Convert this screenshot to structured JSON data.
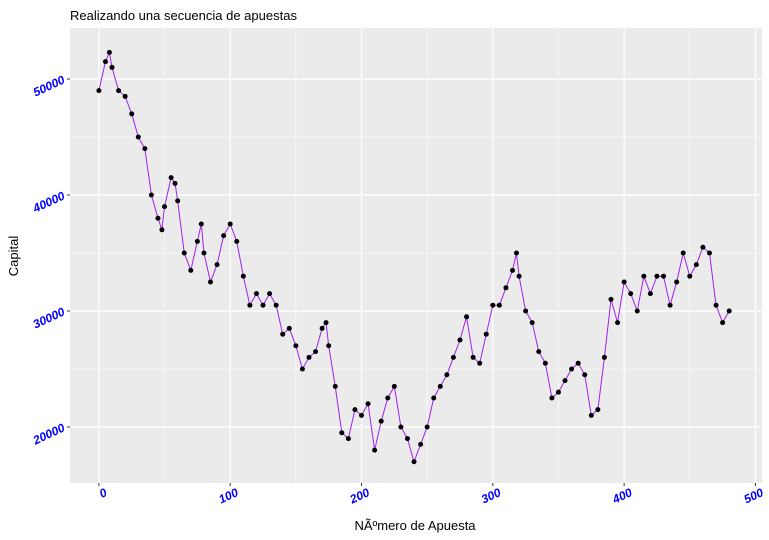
{
  "chart_data": {
    "type": "line",
    "title": "Realizando una secuencia de apuestas",
    "x_label": "NÃºmero de Apuesta",
    "y_label": "Capital",
    "line_color": "#a020f0",
    "point_color": "#000000",
    "tick_label_color": "#0000ff",
    "grid": true,
    "x": [
      0,
      5,
      8,
      10,
      15,
      20,
      25,
      30,
      35,
      40,
      45,
      48,
      50,
      55,
      58,
      60,
      65,
      70,
      75,
      78,
      80,
      85,
      90,
      95,
      100,
      105,
      110,
      115,
      120,
      125,
      130,
      135,
      140,
      145,
      150,
      155,
      160,
      165,
      170,
      173,
      175,
      180,
      185,
      190,
      195,
      200,
      205,
      210,
      215,
      220,
      225,
      230,
      235,
      240,
      245,
      250,
      255,
      260,
      265,
      270,
      275,
      280,
      285,
      290,
      295,
      300,
      305,
      310,
      315,
      318,
      320,
      325,
      330,
      335,
      340,
      345,
      350,
      355,
      360,
      365,
      370,
      375,
      380,
      385,
      390,
      395,
      400,
      405,
      410,
      415,
      420,
      425,
      430,
      435,
      440,
      445,
      450,
      455,
      460,
      465,
      470,
      475,
      480
    ],
    "values": [
      49000,
      51500,
      52300,
      51000,
      49000,
      48500,
      47000,
      45000,
      44000,
      40000,
      38000,
      37000,
      39000,
      41500,
      41000,
      39500,
      35000,
      33500,
      36000,
      37500,
      35000,
      32500,
      34000,
      36500,
      37500,
      36000,
      33000,
      30500,
      31500,
      30500,
      31500,
      30500,
      28000,
      28500,
      27000,
      25000,
      26000,
      26500,
      28500,
      29000,
      27000,
      23500,
      19500,
      19000,
      21500,
      21000,
      22000,
      18000,
      20500,
      22500,
      23500,
      20000,
      19000,
      17000,
      18500,
      20000,
      22500,
      23500,
      24500,
      26000,
      27500,
      29500,
      26000,
      25500,
      28000,
      30500,
      30500,
      32000,
      33500,
      35000,
      33000,
      30000,
      29000,
      26500,
      25500,
      22500,
      23000,
      24000,
      25000,
      25500,
      24500,
      21000,
      21500,
      26000,
      31000,
      29000,
      32500,
      31500,
      30000,
      33000,
      31500,
      33000,
      33000,
      30500,
      32500,
      35000,
      33000,
      34000,
      35500,
      35000,
      30500,
      29000,
      30000
    ],
    "xlim": [
      -22,
      505
    ],
    "xticks": [
      0,
      100,
      200,
      300,
      400,
      500
    ],
    "ylim": [
      15170,
      54400
    ],
    "yticks": [
      20000,
      30000,
      40000,
      50000
    ]
  }
}
